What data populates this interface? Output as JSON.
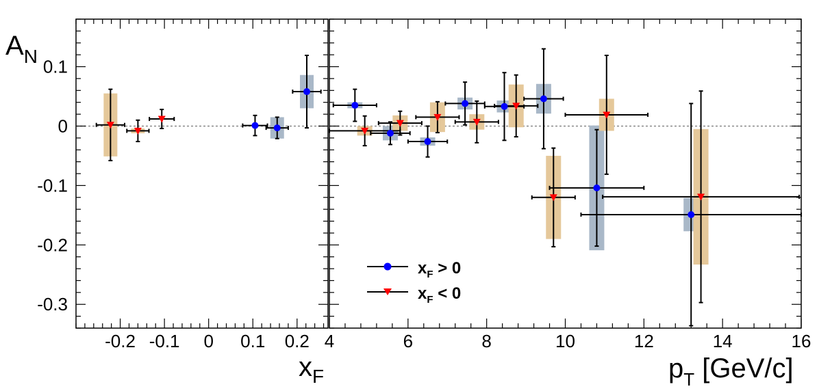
{
  "chart_data": [
    {
      "type": "scatter",
      "panel": "left",
      "ylabel": "A_N",
      "xlabel": "x_F",
      "xlim": [
        -0.3,
        0.27
      ],
      "ylim": [
        -0.34,
        0.18
      ],
      "xticks": [
        -0.2,
        -0.1,
        0,
        0.1,
        0.2
      ],
      "xtick_labels": [
        "-0.2",
        "-0.1",
        "0",
        "0.1",
        "0.2"
      ],
      "yticks": [
        -0.3,
        -0.2,
        -0.1,
        0,
        0.1
      ],
      "ytick_labels": [
        "-0.3",
        "-0.2",
        "-0.1",
        "0",
        "0.1"
      ],
      "reference_line_y": 0,
      "series": [
        {
          "name": "x_F > 0",
          "color": "#0000ff",
          "marker": "circle",
          "syst_color": "#a9b8c8",
          "points": [
            {
              "x": 0.105,
              "y": 0.001,
              "xerr": 0.028,
              "yerr": 0.017,
              "syst": 0.0
            },
            {
              "x": 0.155,
              "y": -0.003,
              "xerr": 0.025,
              "yerr": 0.018,
              "syst": 0.018
            },
            {
              "x": 0.222,
              "y": 0.058,
              "xerr": 0.032,
              "yerr": 0.061,
              "syst": 0.028
            }
          ]
        },
        {
          "name": "x_F < 0",
          "color": "#ff0000",
          "marker": "triangle-down",
          "syst_color": "#e5c89a",
          "points": [
            {
              "x": -0.222,
              "y": 0.002,
              "xerr": 0.032,
              "yerr": 0.06,
              "syst": 0.053
            },
            {
              "x": -0.16,
              "y": -0.008,
              "xerr": 0.025,
              "yerr": 0.018,
              "syst": 0.004
            },
            {
              "x": -0.106,
              "y": 0.012,
              "xerr": 0.028,
              "yerr": 0.016,
              "syst": 0.0
            }
          ]
        }
      ]
    },
    {
      "type": "scatter",
      "panel": "right",
      "xlabel": "p_T [GeV/c]",
      "xlim": [
        4,
        16
      ],
      "ylim": [
        -0.34,
        0.18
      ],
      "xticks": [
        4,
        6,
        8,
        10,
        12,
        14,
        16
      ],
      "xtick_labels": [
        "4",
        "6",
        "8",
        "10",
        "12",
        "14",
        "16"
      ],
      "reference_line_y": 0,
      "series": [
        {
          "name": "x_F > 0",
          "color": "#0000ff",
          "marker": "circle",
          "syst_color": "#a9b8c8",
          "points": [
            {
              "x": 4.65,
              "y": 0.035,
              "xerr": 0.55,
              "yerr": 0.027,
              "syst": 0.005
            },
            {
              "x": 5.55,
              "y": -0.012,
              "xerr": 0.5,
              "yerr": 0.019,
              "syst": 0.012
            },
            {
              "x": 6.5,
              "y": -0.026,
              "xerr": 0.5,
              "yerr": 0.026,
              "syst": 0.007
            },
            {
              "x": 7.45,
              "y": 0.038,
              "xerr": 0.5,
              "yerr": 0.036,
              "syst": 0.01
            },
            {
              "x": 8.45,
              "y": 0.033,
              "xerr": 0.5,
              "yerr": 0.057,
              "syst": 0.01
            },
            {
              "x": 9.45,
              "y": 0.046,
              "xerr": 0.5,
              "yerr": 0.084,
              "syst": 0.025
            },
            {
              "x": 10.8,
              "y": -0.104,
              "xerr": 1.2,
              "yerr": 0.098,
              "syst": 0.105
            },
            {
              "x": 13.2,
              "y": -0.149,
              "xerr": 2.8,
              "yerr": 0.187,
              "syst": 0.028
            }
          ]
        },
        {
          "name": "x_F < 0",
          "color": "#ff0000",
          "marker": "triangle-down",
          "syst_color": "#e5c89a",
          "points": [
            {
              "x": 4.9,
              "y": -0.008,
              "xerr": 0.9,
              "yerr": 0.025,
              "syst": 0.008
            },
            {
              "x": 5.8,
              "y": 0.005,
              "xerr": 0.55,
              "yerr": 0.02,
              "syst": 0.013
            },
            {
              "x": 6.75,
              "y": 0.015,
              "xerr": 0.55,
              "yerr": 0.026,
              "syst": 0.025
            },
            {
              "x": 7.75,
              "y": 0.007,
              "xerr": 0.55,
              "yerr": 0.035,
              "syst": 0.013
            },
            {
              "x": 8.75,
              "y": 0.034,
              "xerr": 0.55,
              "yerr": 0.052,
              "syst": 0.036
            },
            {
              "x": 9.7,
              "y": -0.12,
              "xerr": 0.55,
              "yerr": 0.083,
              "syst": 0.07
            },
            {
              "x": 11.05,
              "y": 0.019,
              "xerr": 1.05,
              "yerr": 0.1,
              "syst": 0.027
            },
            {
              "x": 13.45,
              "y": -0.119,
              "xerr": 2.5,
              "yerr": 0.178,
              "syst": 0.114
            }
          ]
        }
      ],
      "legend": {
        "position": "bottom-left",
        "entries": [
          {
            "label_main": "x",
            "label_sub": "F",
            "label_tail": " > 0",
            "color": "#0000ff",
            "marker": "circle"
          },
          {
            "label_main": "x",
            "label_sub": "F",
            "label_tail": " < 0",
            "color": "#ff0000",
            "marker": "triangle-down"
          }
        ]
      }
    }
  ],
  "y_axis_title": {
    "main": "A",
    "sub": "N"
  },
  "left_x_title": {
    "main": "x",
    "sub": "F"
  },
  "right_x_title": {
    "main": "p",
    "sub": "T",
    "tail": " [GeV/c]"
  }
}
